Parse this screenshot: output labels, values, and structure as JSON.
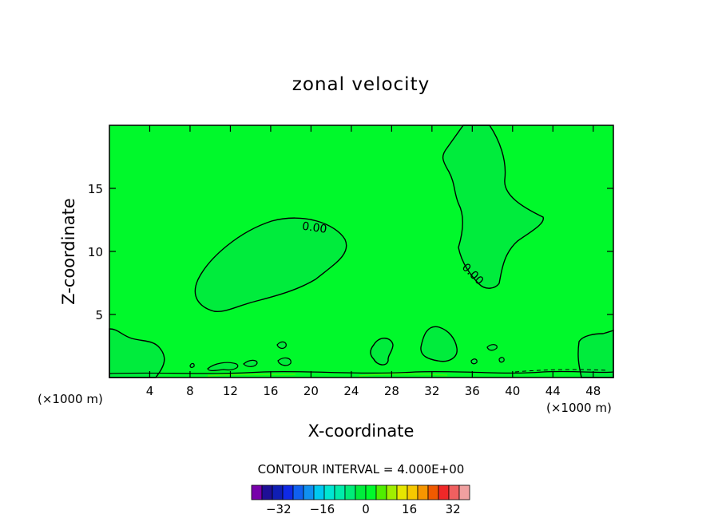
{
  "chart_data": {
    "type": "heatmap",
    "title": "zonal velocity",
    "xlabel": "X-coordinate",
    "ylabel": "Z-coordinate",
    "x_unit_note": "(×1000 m)",
    "x_unit_note_right": "(×1000 m)",
    "xlim": [
      0,
      50
    ],
    "ylim": [
      0,
      20
    ],
    "x_ticks": [
      4,
      8,
      12,
      16,
      20,
      24,
      28,
      32,
      36,
      40,
      44,
      48
    ],
    "y_ticks": [
      5,
      10,
      15
    ],
    "contour_interval_text": "CONTOUR INTERVAL = 4.000E+00",
    "contour_labels": [
      {
        "text": "0.00",
        "x": 20.3,
        "y": 11.6
      },
      {
        "text": "0.00",
        "x": 35.8,
        "y": 8.0
      }
    ],
    "background_color": "#00f92b",
    "region_color": "#00ec3c",
    "colorbar": {
      "ticks": [
        -32,
        -16,
        0,
        16,
        32
      ],
      "min": -40,
      "max": 40,
      "colors": [
        "#7700aa",
        "#1e0f96",
        "#0f1eb4",
        "#0f2ae6",
        "#1060f0",
        "#1090f0",
        "#00c8f0",
        "#00e6d2",
        "#00ecaa",
        "#00ec78",
        "#00ec3c",
        "#00f92b",
        "#50ee00",
        "#a0ee00",
        "#e6e600",
        "#f6c800",
        "#f69600",
        "#f05a00",
        "#f02828",
        "#f06060",
        "#f0a0a0"
      ]
    }
  }
}
